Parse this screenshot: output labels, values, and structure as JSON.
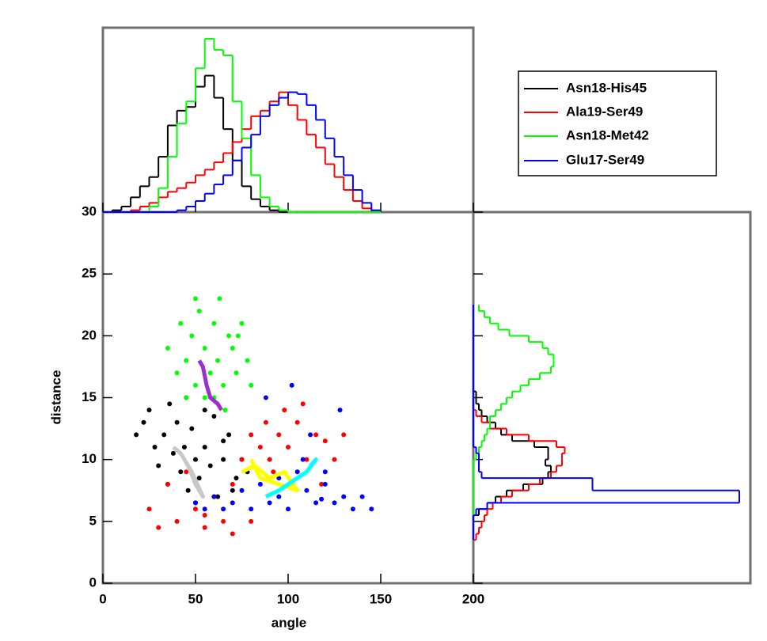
{
  "chart_data": [
    {
      "type": "scatter",
      "xlabel": "angle",
      "ylabel": "distance",
      "xlim": [
        0,
        200
      ],
      "xticks": [
        0,
        50,
        100,
        150,
        200
      ],
      "ylim": [
        0,
        30
      ],
      "yticks": [
        0,
        5,
        10,
        15,
        20,
        25,
        30
      ],
      "legend": "upper right",
      "series": [
        {
          "name": "Asn18-His45",
          "color": "#000000",
          "x": [
            22,
            28,
            30,
            33,
            35,
            38,
            40,
            42,
            44,
            46,
            48,
            50,
            52,
            55,
            58,
            60,
            62,
            65,
            68,
            72,
            75,
            78,
            25,
            36,
            45,
            55,
            65,
            70,
            18,
            50
          ],
          "y": [
            13,
            11,
            9.5,
            12,
            8,
            10.5,
            13,
            9,
            11,
            7.5,
            12.5,
            10,
            8.5,
            11,
            9.5,
            13.5,
            7,
            10,
            12,
            8.5,
            10,
            9,
            14,
            14.5,
            15,
            14,
            11.5,
            7.5,
            12,
            6.5
          ]
        },
        {
          "name": "Ala19-Ser49",
          "color": "#ff0000",
          "x": [
            25,
            30,
            35,
            40,
            45,
            50,
            55,
            60,
            65,
            70,
            75,
            80,
            85,
            88,
            90,
            95,
            98,
            100,
            105,
            110,
            115,
            120,
            125,
            130,
            80,
            92,
            108,
            118,
            55,
            70
          ],
          "y": [
            6,
            4.5,
            8,
            5,
            9,
            6,
            4.5,
            7,
            5,
            8,
            10,
            12,
            11,
            13,
            10,
            12,
            14,
            11,
            13,
            10,
            12,
            11.5,
            10,
            12,
            5,
            9,
            14.5,
            8,
            5.5,
            4
          ]
        },
        {
          "name": "Asn18-Met42",
          "color": "#00ff00",
          "x": [
            35,
            40,
            42,
            45,
            48,
            50,
            52,
            55,
            55,
            58,
            60,
            62,
            63,
            65,
            68,
            70,
            72,
            75,
            78,
            80,
            45,
            60,
            66,
            50,
            73
          ],
          "y": [
            19,
            17,
            21,
            18,
            20,
            16,
            22,
            15,
            19,
            17,
            21,
            18,
            23,
            16,
            20,
            19,
            17,
            21,
            18,
            16,
            15,
            15,
            14,
            23,
            20
          ]
        },
        {
          "name": "Glu17-Ser49",
          "color": "#0000ff",
          "x": [
            50,
            55,
            60,
            65,
            70,
            75,
            80,
            85,
            90,
            95,
            100,
            105,
            110,
            115,
            120,
            125,
            130,
            135,
            140,
            145,
            88,
            102,
            112,
            128,
            108,
            95,
            120,
            118
          ],
          "y": [
            6.5,
            6,
            7,
            6,
            6.5,
            7.5,
            6,
            8,
            6.5,
            7,
            6,
            9,
            7.5,
            6.5,
            8,
            6.5,
            7,
            6,
            7,
            6,
            15,
            16,
            12,
            14,
            10,
            8.5,
            9,
            6.8
          ]
        }
      ],
      "trajectories": [
        {
          "color": "#c8c8c8",
          "x": [
            38,
            42,
            46,
            50,
            54,
            48,
            44
          ],
          "y": [
            11,
            10.5,
            9.5,
            8,
            7,
            9,
            10
          ]
        },
        {
          "color": "#9932cc",
          "x": [
            52,
            54,
            56,
            58,
            62,
            64
          ],
          "y": [
            18,
            17.5,
            16,
            15,
            14.5,
            14
          ]
        },
        {
          "color": "#ffff00",
          "x": [
            75,
            82,
            90,
            98,
            105,
            95,
            85,
            80
          ],
          "y": [
            9,
            9.5,
            8.5,
            9,
            7.5,
            8,
            8.5,
            10
          ]
        },
        {
          "color": "#00ffff",
          "x": [
            88,
            95,
            100,
            105,
            110,
            115,
            112
          ],
          "y": [
            7,
            7.5,
            8,
            8.5,
            9,
            10,
            9.5
          ]
        }
      ]
    },
    {
      "type": "histogram",
      "orientation": "vertical",
      "ylim": [
        0,
        100
      ],
      "bins": [
        0,
        5,
        10,
        15,
        20,
        25,
        30,
        35,
        40,
        45,
        50,
        55,
        60,
        65,
        70,
        75,
        80,
        85,
        90,
        95,
        100,
        105,
        110,
        115,
        120,
        125,
        130,
        135,
        140,
        145,
        150
      ],
      "series": [
        {
          "color": "#000000",
          "values": [
            0,
            1,
            3,
            8,
            14,
            19,
            30,
            47,
            55,
            57,
            68,
            74,
            62,
            45,
            28,
            14,
            7,
            3,
            1,
            0,
            0,
            0,
            0,
            0,
            0,
            0,
            0,
            0,
            0,
            0
          ]
        },
        {
          "color": "#ff0000",
          "values": [
            0,
            0,
            0,
            1,
            3,
            5,
            8,
            11,
            13,
            16,
            20,
            23,
            27,
            32,
            38,
            45,
            52,
            55,
            60,
            65,
            58,
            50,
            42,
            35,
            26,
            19,
            12,
            6,
            2,
            0
          ]
        },
        {
          "color": "#00ff00",
          "values": [
            0,
            0,
            0,
            0,
            0,
            3,
            13,
            30,
            48,
            60,
            78,
            94,
            88,
            85,
            60,
            40,
            20,
            8,
            3,
            1,
            0,
            0,
            0,
            0,
            0,
            0,
            0,
            0,
            0,
            0
          ]
        },
        {
          "color": "#0000ff",
          "values": [
            0,
            0,
            0,
            0,
            0,
            0,
            0,
            0,
            1,
            3,
            6,
            10,
            15,
            20,
            28,
            35,
            42,
            52,
            58,
            62,
            65,
            64,
            58,
            50,
            40,
            30,
            20,
            12,
            5,
            1
          ]
        }
      ]
    },
    {
      "type": "histogram",
      "orientation": "horizontal",
      "xlim": [
        0,
        100
      ],
      "bins": [
        3.5,
        4,
        4.5,
        5,
        5.5,
        6,
        6.5,
        7,
        7.5,
        8,
        8.5,
        9,
        9.5,
        10,
        10.5,
        11,
        11.5,
        12,
        12.5,
        13,
        13.5,
        14,
        14.5,
        15,
        15.5,
        16,
        16.5,
        17,
        17.5,
        18,
        18.5,
        19,
        19.5,
        20,
        20.5,
        21,
        21.5,
        22,
        22.5
      ],
      "series": [
        {
          "color": "#000000",
          "values": [
            0,
            0,
            0,
            0,
            2,
            5,
            8,
            12,
            18,
            25,
            27,
            28,
            26,
            27,
            27,
            22,
            14,
            10,
            8,
            5,
            3,
            2,
            1,
            1,
            0,
            0,
            0,
            0,
            0,
            0,
            0,
            0,
            0,
            0,
            0,
            0,
            0,
            0
          ]
        },
        {
          "color": "#ff0000",
          "values": [
            1,
            2,
            3,
            4,
            5,
            7,
            10,
            14,
            20,
            24,
            28,
            30,
            32,
            32,
            33,
            30,
            20,
            12,
            6,
            3,
            1,
            0,
            0,
            0,
            0,
            0,
            0,
            0,
            0,
            0,
            0,
            0,
            0,
            0,
            0,
            0,
            0,
            0
          ]
        },
        {
          "color": "#00ff00",
          "values": [
            0,
            0,
            0,
            0,
            0,
            0,
            0,
            0,
            0,
            0,
            0,
            0,
            0,
            1,
            2,
            3,
            4,
            5,
            6,
            6,
            8,
            10,
            12,
            14,
            17,
            20,
            24,
            28,
            29,
            29,
            27,
            25,
            20,
            13,
            9,
            6,
            4,
            2
          ]
        },
        {
          "color": "#0000ff",
          "values": [
            0,
            0,
            0,
            0,
            1,
            5,
            96,
            96,
            43,
            43,
            3,
            2,
            2,
            2,
            1,
            0,
            0,
            0,
            0,
            0,
            0,
            0,
            0,
            0,
            0,
            0,
            0,
            0,
            0,
            0,
            0,
            0,
            0,
            0,
            0,
            0,
            0,
            0
          ]
        }
      ]
    }
  ]
}
